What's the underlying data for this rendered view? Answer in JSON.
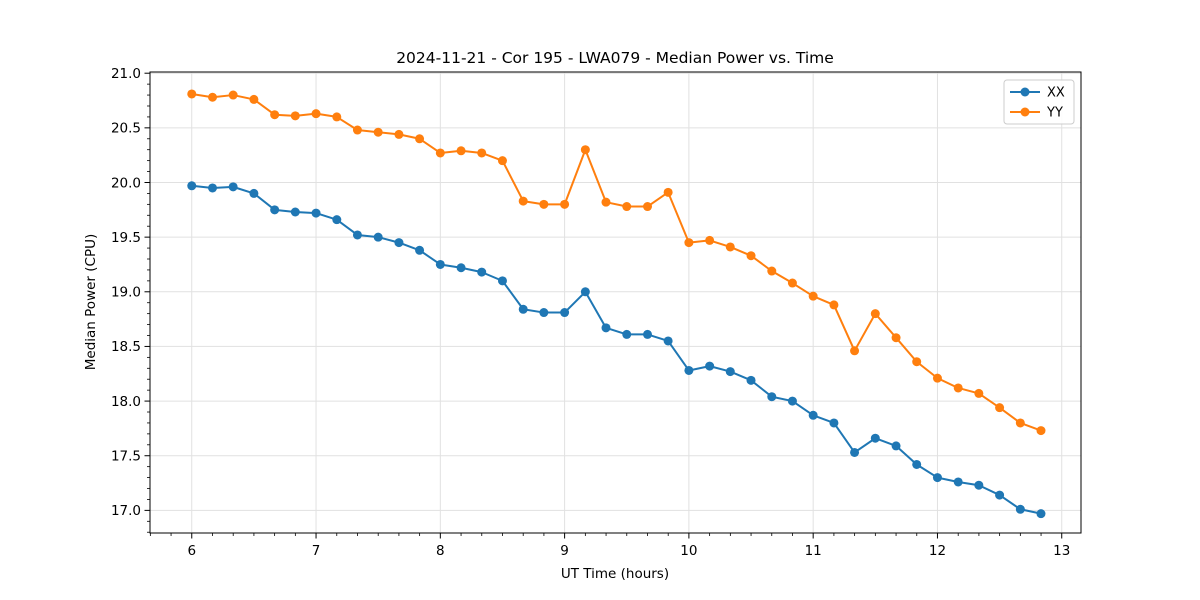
{
  "figure": {
    "title": "2024-11-21 - Cor 195 - LWA079 - Median Power vs. Time"
  },
  "chart_data": {
    "type": "line",
    "title": "2024-11-21 - Cor 195 - LWA079 - Median Power vs. Time",
    "xlabel": "UT Time (hours)",
    "ylabel": "Median Power (CPU)",
    "x": [
      6.0,
      6.167,
      6.333,
      6.5,
      6.667,
      6.833,
      7.0,
      7.167,
      7.333,
      7.5,
      7.667,
      7.833,
      8.0,
      8.167,
      8.333,
      8.5,
      8.667,
      8.833,
      9.0,
      9.167,
      9.333,
      9.5,
      9.667,
      9.833,
      10.0,
      10.167,
      10.333,
      10.5,
      10.667,
      10.833,
      11.0,
      11.167,
      11.333,
      11.5,
      11.667,
      11.833,
      12.0,
      12.167,
      12.333,
      12.5,
      12.667,
      12.833
    ],
    "series": [
      {
        "name": "XX",
        "color": "#1f77b4",
        "marker": "circle",
        "values": [
          19.97,
          19.95,
          19.96,
          19.9,
          19.75,
          19.73,
          19.72,
          19.66,
          19.52,
          19.5,
          19.45,
          19.38,
          19.25,
          19.22,
          19.18,
          19.1,
          18.84,
          18.81,
          18.81,
          19.0,
          18.67,
          18.61,
          18.61,
          18.55,
          18.28,
          18.32,
          18.27,
          18.19,
          18.04,
          18.0,
          17.87,
          17.8,
          17.53,
          17.66,
          17.59,
          17.42,
          17.3,
          17.26,
          17.23,
          17.14,
          17.01,
          16.97
        ]
      },
      {
        "name": "YY",
        "color": "#ff7f0e",
        "marker": "circle",
        "values": [
          20.81,
          20.78,
          20.8,
          20.76,
          20.62,
          20.61,
          20.63,
          20.6,
          20.48,
          20.46,
          20.44,
          20.4,
          20.27,
          20.29,
          20.27,
          20.2,
          19.83,
          19.8,
          19.8,
          20.3,
          19.82,
          19.78,
          19.78,
          19.91,
          19.45,
          19.47,
          19.41,
          19.33,
          19.19,
          19.08,
          18.96,
          18.88,
          18.46,
          18.8,
          18.58,
          18.36,
          18.21,
          18.12,
          18.07,
          17.94,
          17.8,
          17.73
        ]
      }
    ],
    "xlim": [
      5.664,
      13.155
    ],
    "ylim": [
      16.793,
      21.011
    ],
    "xticks": [
      6,
      7,
      8,
      9,
      10,
      11,
      12,
      13
    ],
    "yticks": [
      17.0,
      17.5,
      18.0,
      18.5,
      19.0,
      19.5,
      20.0,
      20.5,
      21.0
    ],
    "x_minor_step": 0.16667,
    "y_minor_step": 0.1,
    "grid": true,
    "grid_color": "#e1e1e1",
    "spine_color": "#000000",
    "legend": {
      "position": "upper right",
      "entries": [
        "XX",
        "YY"
      ]
    }
  }
}
